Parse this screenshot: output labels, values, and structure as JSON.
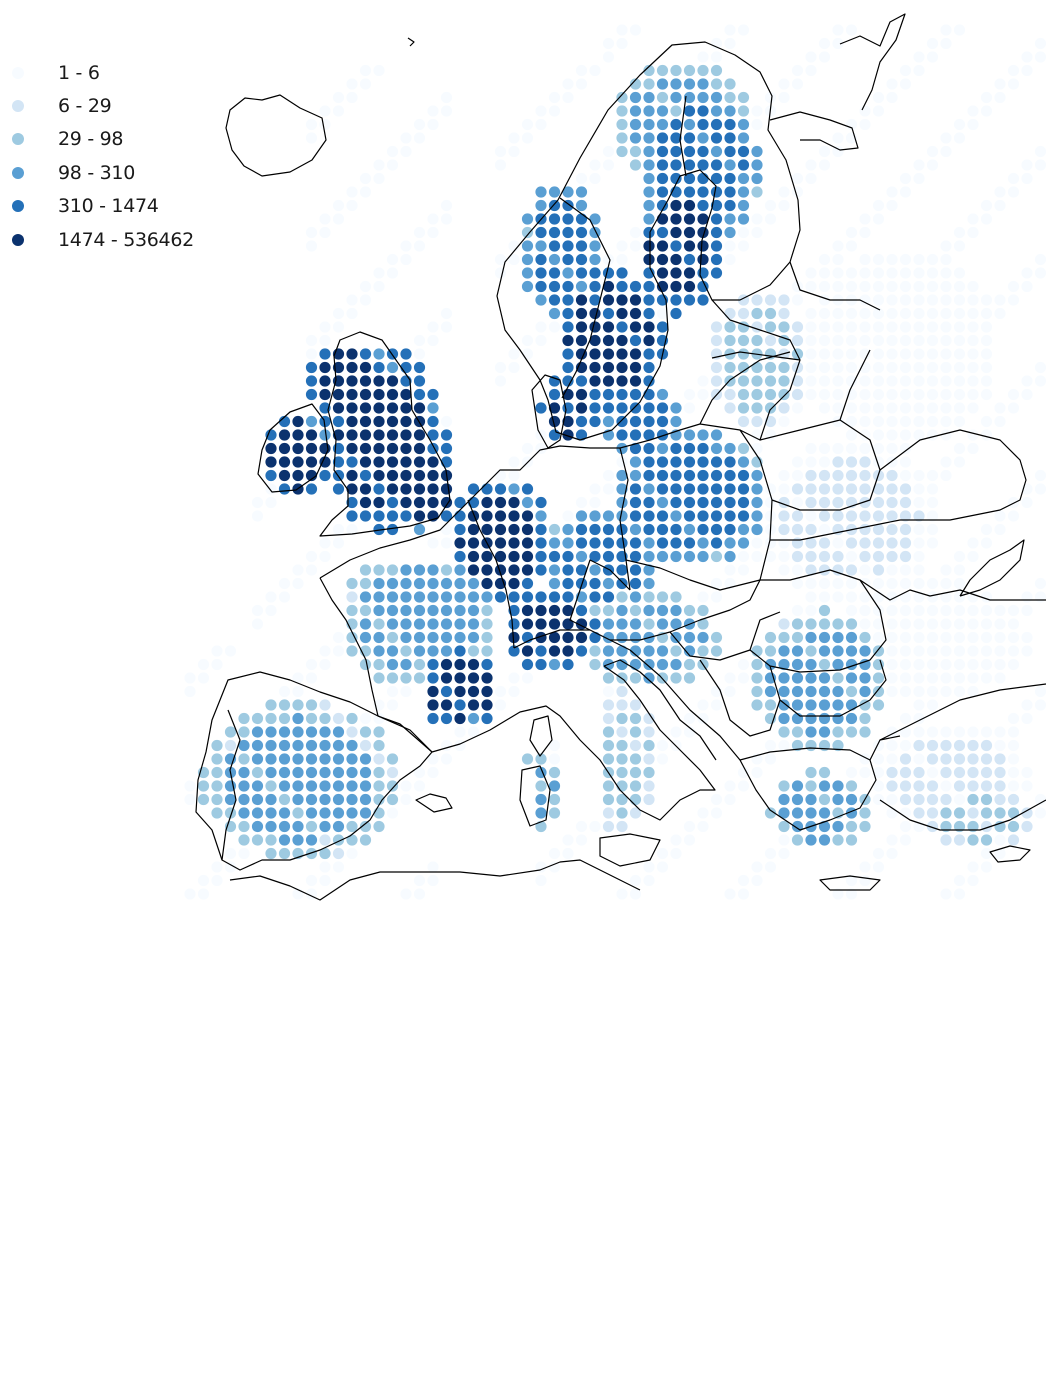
{
  "legend": {
    "classes": [
      {
        "label": "1 - 6",
        "color": "#f7fbff"
      },
      {
        "label": "6 - 29",
        "color": "#d3e5f5"
      },
      {
        "label": "29 - 98",
        "color": "#9ecae1"
      },
      {
        "label": "98 - 310",
        "color": "#5a9fd3"
      },
      {
        "label": "310 - 1474",
        "color": "#2470b8"
      },
      {
        "label": "1474 - 536462",
        "color": "#0b326e"
      }
    ]
  },
  "map": {
    "region": "Europe",
    "dot_palette": [
      "#f7fbff",
      "#d3e5f5",
      "#9ecae1",
      "#5a9fd3",
      "#2470b8",
      "#0b326e"
    ],
    "boundary_color": "#000000"
  }
}
